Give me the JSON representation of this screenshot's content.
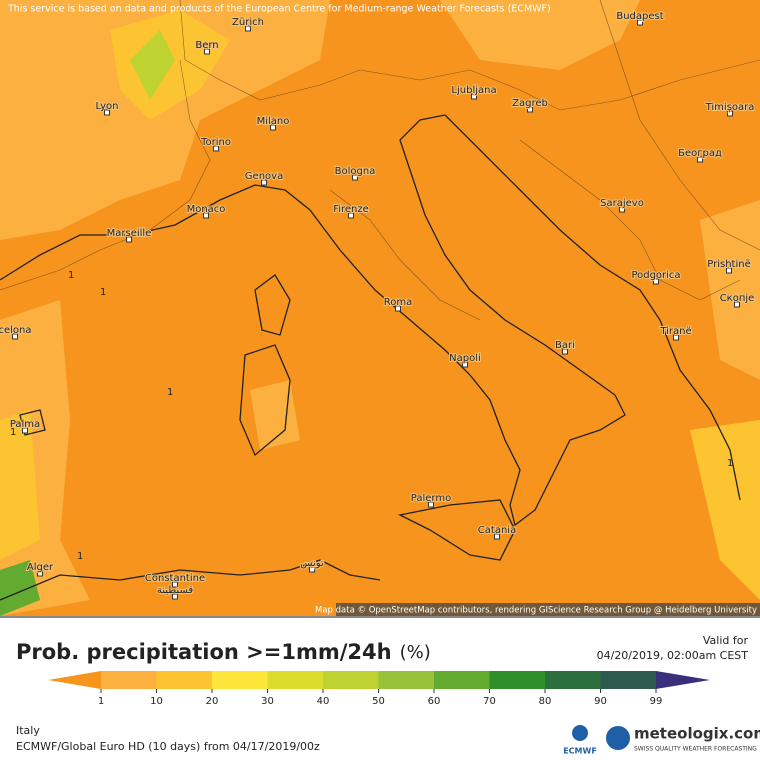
{
  "header": {
    "notice": "This service is based on data and products of the European Centre for Medium-range Weather Forecasts (ECMWF)",
    "map_credit": "Map data © OpenStreetMap contributors, rendering GIScience Research Group @ Heidelberg University"
  },
  "cities": [
    "Budapest",
    "Zürich",
    "Bern",
    "Lyon",
    "Milano",
    "Torino",
    "Ljubljana",
    "Zagreb",
    "Timișoara",
    "Београд",
    "Genova",
    "Bologna",
    "Monaco",
    "Firenze",
    "Sarajevo",
    "Marseille",
    "Podgorica",
    "Prishtinë",
    "Roma",
    "Скопје",
    "celona",
    "Tiranë",
    "Bari",
    "Napoli",
    "Palma",
    "Palermo",
    "Catania",
    "Alger",
    "Constantine",
    "قسنطينة",
    "تونس"
  ],
  "contour_labels": [
    "1",
    "1",
    "1",
    "1",
    "1",
    "1"
  ],
  "title": {
    "text": "Prob. precipitation >=1mm/24h",
    "unit": "(%)"
  },
  "valid": {
    "label": "Valid for",
    "time": "04/20/2019, 02:00am CEST"
  },
  "legend": {
    "ticks": [
      1,
      10,
      20,
      30,
      40,
      50,
      60,
      70,
      80,
      90,
      99
    ],
    "colors": [
      "#f7941d",
      "#fbb040",
      "#fdc431",
      "#fde53a",
      "#dcdc2c",
      "#bed232",
      "#96c33a",
      "#62ab30",
      "#2f8f2a",
      "#2b6f3c",
      "#2f5a4f",
      "#3a2f7a"
    ]
  },
  "footer": {
    "region": "Italy",
    "model": "ECMWF/Global Euro HD (10 days) from 04/17/2019/00z",
    "ecmwf": "ECMWF",
    "brand": "meteologix.com",
    "slogan": "SWISS QUALITY WEATHER FORECASTING"
  }
}
